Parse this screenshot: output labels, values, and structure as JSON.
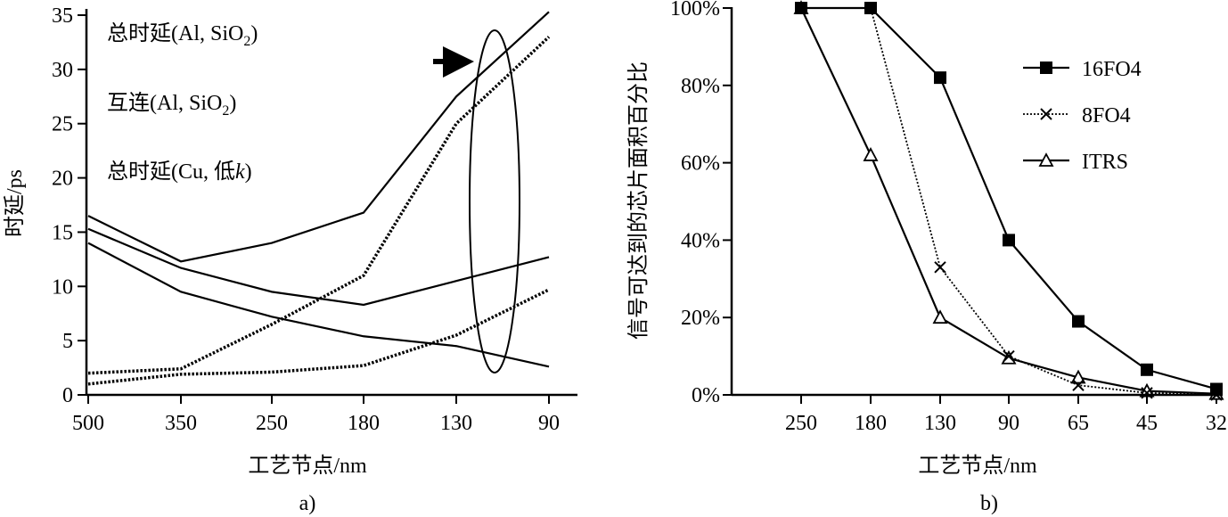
{
  "chart_data": [
    {
      "type": "line",
      "panel_label": "a)",
      "xlabel": "工艺节点/nm",
      "ylabel": "时延/ps",
      "categories": [
        "500",
        "350",
        "250",
        "180",
        "130",
        "90"
      ],
      "yticks": [
        "0",
        "5",
        "10",
        "15",
        "20",
        "25",
        "30",
        "35"
      ],
      "ylim": [
        0,
        35
      ],
      "annotations": [
        "总时延(Al, SiO",
        "2",
        ")",
        "互连(Al, SiO",
        "2",
        ")",
        "总时延(Cu, 低",
        "k",
        ")"
      ],
      "series": [
        {
          "style": "solid",
          "values": [
            16.5,
            12.3,
            14.0,
            16.8,
            27.5,
            35.3
          ]
        },
        {
          "style": "solid",
          "values": [
            15.3,
            11.7,
            9.5,
            8.3,
            10.5,
            12.7
          ]
        },
        {
          "style": "solid",
          "values": [
            14.0,
            9.5,
            7.2,
            5.4,
            4.5,
            2.6
          ]
        },
        {
          "style": "dotted",
          "values": [
            2.0,
            2.4,
            6.5,
            11.0,
            25.0,
            33.0
          ]
        },
        {
          "style": "dotted",
          "values": [
            1.0,
            1.9,
            2.1,
            2.7,
            5.5,
            9.7
          ]
        }
      ],
      "highlight": {
        "shape": "ellipse",
        "arrow": true,
        "x_between": [
          "130",
          "90"
        ],
        "y_range": [
          2,
          34
        ]
      }
    },
    {
      "type": "line",
      "panel_label": "b)",
      "xlabel": "工艺节点/nm",
      "ylabel": "信号可达到的芯片面积百分比",
      "categories": [
        "250",
        "180",
        "130",
        "90",
        "65",
        "45",
        "32"
      ],
      "yticks": [
        "0%",
        "20%",
        "40%",
        "60%",
        "80%",
        "100%"
      ],
      "ylim": [
        0,
        100
      ],
      "legend": "top-right",
      "series": [
        {
          "name": "16FO4",
          "marker": "filled-square",
          "style": "solid",
          "values": [
            100,
            100,
            82,
            40,
            19,
            6.5,
            1.5
          ]
        },
        {
          "name": "8FO4",
          "marker": "x",
          "style": "dotted",
          "values": [
            100,
            100,
            33,
            10,
            2.5,
            0.5,
            0
          ]
        },
        {
          "name": "ITRS",
          "marker": "open-triangle",
          "style": "solid",
          "values": [
            100,
            62,
            20,
            9.5,
            4.5,
            1,
            0.3
          ]
        }
      ]
    }
  ]
}
